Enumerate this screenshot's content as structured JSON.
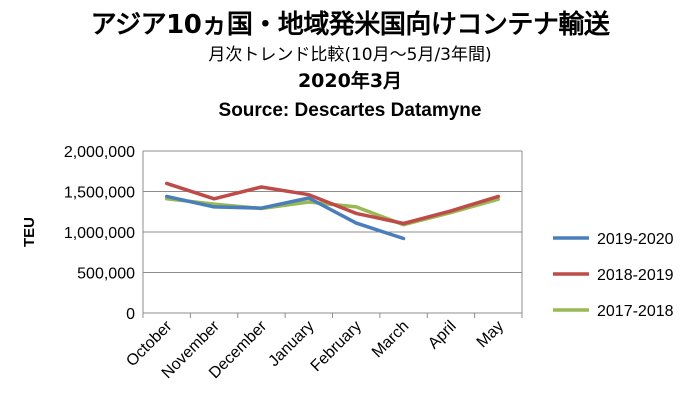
{
  "chart_data": {
    "type": "line",
    "title": "アジア10ヵ国・地域発米国向けコンテナ輸送",
    "subtitle": "月次トレンド比較(10月～5月/3年間)",
    "period": "2020年3月",
    "source": "Source: Descartes Datamyne",
    "ylabel": "TEU",
    "xlabel": "",
    "ylim": [
      0,
      2000000
    ],
    "yticks": [
      0,
      500000,
      1000000,
      1500000,
      2000000
    ],
    "ytick_labels": [
      "0",
      "500,000",
      "1,000,000",
      "1,500,000",
      "2,000,000"
    ],
    "grid": true,
    "legend": "right",
    "categories": [
      "October",
      "November",
      "December",
      "January",
      "February",
      "March",
      "April",
      "May"
    ],
    "series": [
      {
        "name": "2019-2020",
        "color": "#4a7ebb",
        "values": [
          1440000,
          1310000,
          1295000,
          1420000,
          1110000,
          920000,
          null,
          null
        ]
      },
      {
        "name": "2018-2019",
        "color": "#be4b48",
        "values": [
          1600000,
          1410000,
          1555000,
          1460000,
          1230000,
          1105000,
          1260000,
          1440000
        ]
      },
      {
        "name": "2017-2018",
        "color": "#98b954",
        "values": [
          1410000,
          1345000,
          1290000,
          1370000,
          1310000,
          1090000,
          1240000,
          1405000
        ]
      }
    ]
  }
}
